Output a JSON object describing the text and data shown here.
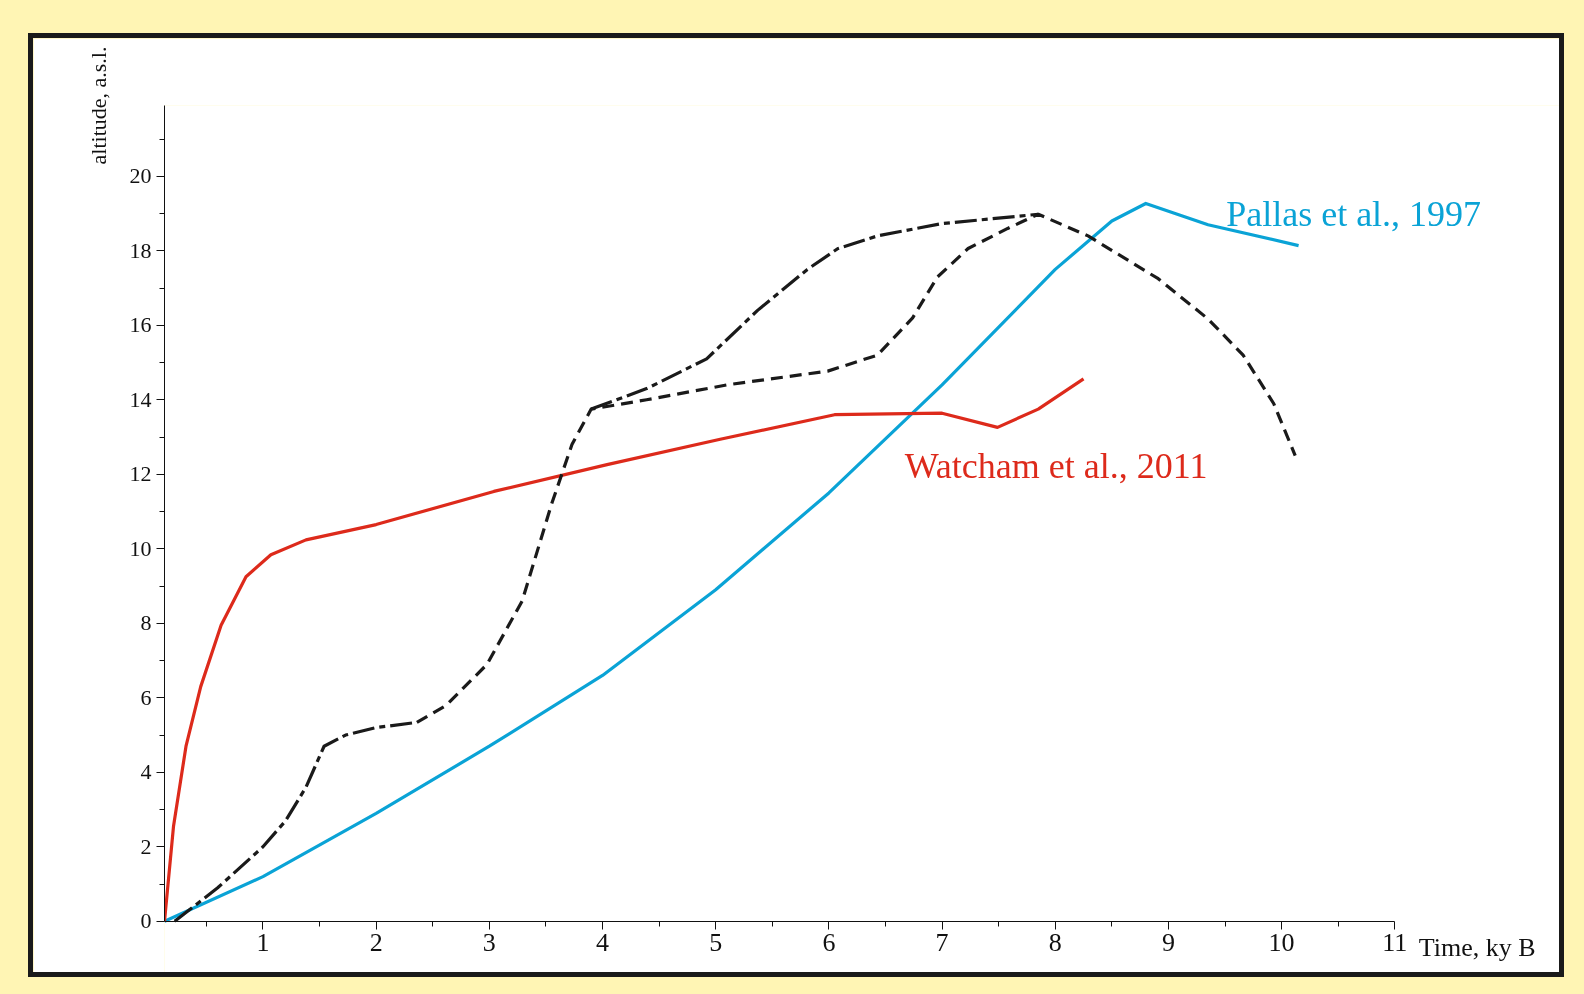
{
  "chart_data": {
    "type": "line",
    "xlabel": "Time, ky B",
    "ylabel": "altitude, a.s.l.",
    "xlim": [
      0.13,
      11
    ],
    "ylim": [
      0,
      21.9
    ],
    "xticks": [
      1,
      2,
      3,
      4,
      5,
      6,
      7,
      8,
      9,
      10,
      11,
      {
        "value": 0.5,
        "label": null
      },
      {
        "value": 1.5,
        "label": null
      },
      {
        "value": 2.5,
        "label": null
      },
      {
        "value": 3.5,
        "label": null
      },
      {
        "value": 4.5,
        "label": null
      },
      {
        "value": 5.5,
        "label": null
      },
      {
        "value": 6.5,
        "label": null
      },
      {
        "value": 7.5,
        "label": null
      },
      {
        "value": 8.5,
        "label": null
      },
      {
        "value": 9.5,
        "label": null
      },
      {
        "value": 10.5,
        "label": null
      }
    ],
    "yticks": [
      0,
      2,
      4,
      6,
      8,
      10,
      12,
      14,
      16,
      18,
      20,
      {
        "value": 1,
        "label": null
      },
      {
        "value": 3,
        "label": null
      },
      {
        "value": 5,
        "label": null
      },
      {
        "value": 7,
        "label": null
      },
      {
        "value": 9,
        "label": null
      },
      {
        "value": 11,
        "label": null
      },
      {
        "value": 13,
        "label": null
      },
      {
        "value": 15,
        "label": null
      },
      {
        "value": 17,
        "label": null
      },
      {
        "value": 19,
        "label": null
      },
      {
        "value": 21,
        "label": null
      }
    ],
    "grid": false,
    "series": [
      {
        "name": "Pallas et al., 1997",
        "color": "#0aa3d6",
        "line_style": "solid",
        "x": [
          0.13,
          1,
          2,
          3,
          4,
          5,
          6,
          7,
          8,
          8.5,
          8.8,
          9.35,
          10.15
        ],
        "values": [
          0,
          1.2,
          2.9,
          4.7,
          6.6,
          8.9,
          11.5,
          14.4,
          17.5,
          18.8,
          19.27,
          18.7,
          18.14
        ]
      },
      {
        "name": "Watcham et al., 2011",
        "color": "#dd2a1b",
        "line_style": "solid",
        "x": [
          0.13,
          0.21,
          0.32,
          0.45,
          0.63,
          0.85,
          1.07,
          1.38,
          2.0,
          3.04,
          4.04,
          5.04,
          6.05,
          7.0,
          7.49,
          7.85,
          8.25
        ],
        "values": [
          0,
          2.56,
          4.7,
          6.3,
          7.95,
          9.25,
          9.84,
          10.24,
          10.65,
          11.54,
          12.26,
          12.94,
          13.6,
          13.64,
          13.26,
          13.75,
          14.56
        ]
      },
      {
        "color": "#1a1a1a",
        "line_style": "dashdot",
        "x": [
          0.22,
          0.6,
          1.0,
          1.2,
          1.38,
          1.54,
          1.73,
          2.0,
          2.36,
          3.1,
          3.9,
          4.39,
          4.92,
          5.37,
          5.81,
          6.08,
          6.43,
          7.0,
          7.85
        ],
        "values": [
          0,
          0.9,
          2.0,
          2.7,
          3.6,
          4.7,
          5.0,
          5.2,
          5.34,
          null,
          13.75,
          14.3,
          15.1,
          16.4,
          17.5,
          18.06,
          18.4,
          18.73,
          18.98
        ]
      },
      {
        "color": "#1a1a1a",
        "line_style": "dashed",
        "x": [
          2.36,
          2.62,
          2.98,
          3.29,
          3.55,
          3.73,
          3.9,
          4.39,
          5.1,
          5.99,
          6.43,
          6.74,
          6.96,
          7.23,
          7.58,
          7.85,
          8.29,
          8.91,
          9.35,
          9.66,
          9.93,
          10.12
        ],
        "values": [
          5.34,
          5.8,
          6.9,
          8.6,
          11.2,
          12.8,
          13.75,
          14.0,
          14.4,
          14.77,
          15.2,
          16.2,
          17.3,
          18.06,
          18.6,
          18.98,
          18.4,
          17.25,
          16.17,
          15.2,
          13.9,
          12.5
        ]
      }
    ]
  }
}
